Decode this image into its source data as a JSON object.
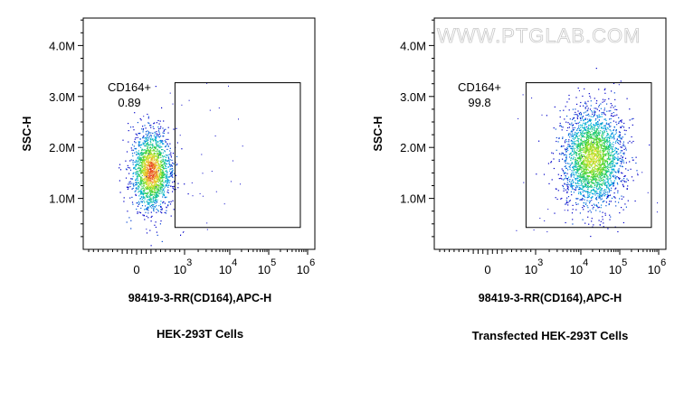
{
  "watermark": "WWW.PTGLAB.COM",
  "chart_data": [
    {
      "type": "scatter",
      "subtype": "flow-cytometry-density-dot-plot",
      "caption": "HEK-293T Cells",
      "xlabel": "98419-3-RR(CD164),APC-H",
      "ylabel": "SSC-H",
      "x_scale": "biexponential",
      "x_ticks": [
        {
          "main": "0",
          "exp": ""
        },
        {
          "main": "10",
          "exp": "3"
        },
        {
          "main": "10",
          "exp": "4"
        },
        {
          "main": "10",
          "exp": "5"
        },
        {
          "main": "10",
          "exp": "6"
        }
      ],
      "y_ticks": [
        "1.0M",
        "2.0M",
        "3.0M",
        "4.0M"
      ],
      "ylim": [
        0,
        4530000
      ],
      "gate": {
        "name": "CD164+",
        "percent": "0.89",
        "x_range": [
          800,
          650000
        ],
        "y_range": [
          430000,
          3270000
        ]
      },
      "population": {
        "center_x": 300,
        "center_y": 1550000
      },
      "color_scale": [
        "#0000c8",
        "#00b4e6",
        "#32d232",
        "#f0e632",
        "#e61e1e"
      ]
    },
    {
      "type": "scatter",
      "subtype": "flow-cytometry-density-dot-plot",
      "caption": "Transfected HEK-293T Cells",
      "xlabel": "98419-3-RR(CD164),APC-H",
      "ylabel": "SSC-H",
      "x_scale": "biexponential",
      "x_ticks": [
        {
          "main": "0",
          "exp": ""
        },
        {
          "main": "10",
          "exp": "3"
        },
        {
          "main": "10",
          "exp": "4"
        },
        {
          "main": "10",
          "exp": "5"
        },
        {
          "main": "10",
          "exp": "6"
        }
      ],
      "y_ticks": [
        "1.0M",
        "2.0M",
        "3.0M",
        "4.0M"
      ],
      "ylim": [
        0,
        4530000
      ],
      "gate": {
        "name": "CD164+",
        "percent": "99.8",
        "x_range": [
          800,
          650000
        ],
        "y_range": [
          430000,
          3270000
        ]
      },
      "population": {
        "center_x": 20000,
        "center_y": 1800000
      },
      "color_scale": [
        "#0000c8",
        "#00b4e6",
        "#32d232",
        "#f0e632",
        "#e61e1e"
      ]
    }
  ]
}
